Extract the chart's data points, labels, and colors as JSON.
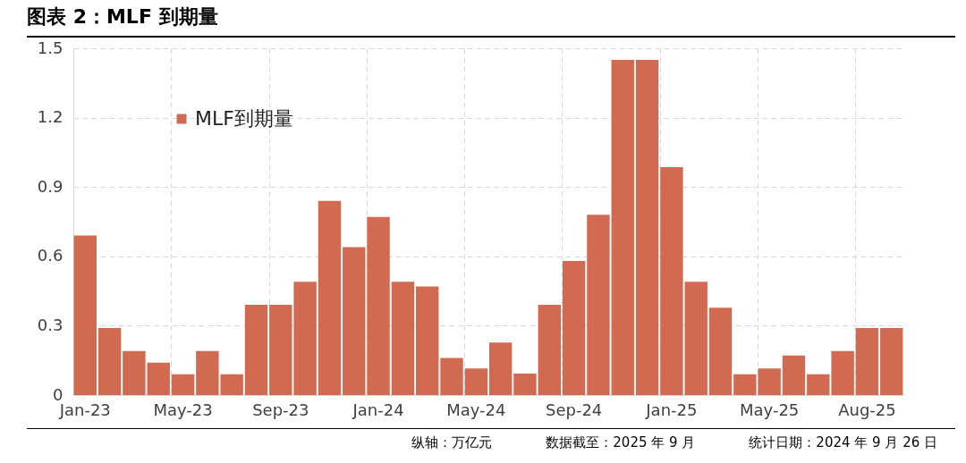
{
  "chart_data": {
    "type": "bar",
    "title": "图表 2：MLF 到期量",
    "categories": [
      "Jan-23",
      null,
      null,
      null,
      "May-23",
      null,
      null,
      null,
      "Sep-23",
      null,
      null,
      null,
      "Jan-24",
      null,
      null,
      null,
      "May-24",
      null,
      null,
      null,
      "Sep-24",
      null,
      null,
      null,
      "Jan-25",
      null,
      null,
      null,
      "May-25",
      null,
      null,
      null,
      "Aug-25",
      null
    ],
    "series": [
      {
        "name": "MLF到期量",
        "color": "#d16a50",
        "values": [
          0.69,
          0.29,
          0.19,
          0.14,
          0.09,
          0.19,
          0.09,
          0.39,
          0.39,
          0.49,
          0.84,
          0.64,
          0.77,
          0.49,
          0.47,
          0.16,
          0.115,
          0.227,
          0.093,
          0.39,
          0.58,
          0.78,
          1.45,
          1.45,
          0.986,
          0.49,
          0.378,
          0.09,
          0.115,
          0.171,
          0.09,
          0.19,
          0.29,
          0.29
        ]
      }
    ],
    "ylim": [
      0,
      1.5
    ],
    "yticks": [
      0,
      0.3,
      0.6,
      0.9,
      1.2,
      1.5
    ],
    "grid": true,
    "legend": "top left",
    "annotations": [
      "纵轴：万亿元",
      "数据截至：2025 年 9 月",
      "统计日期：2024 年 9 月 26 日"
    ]
  }
}
